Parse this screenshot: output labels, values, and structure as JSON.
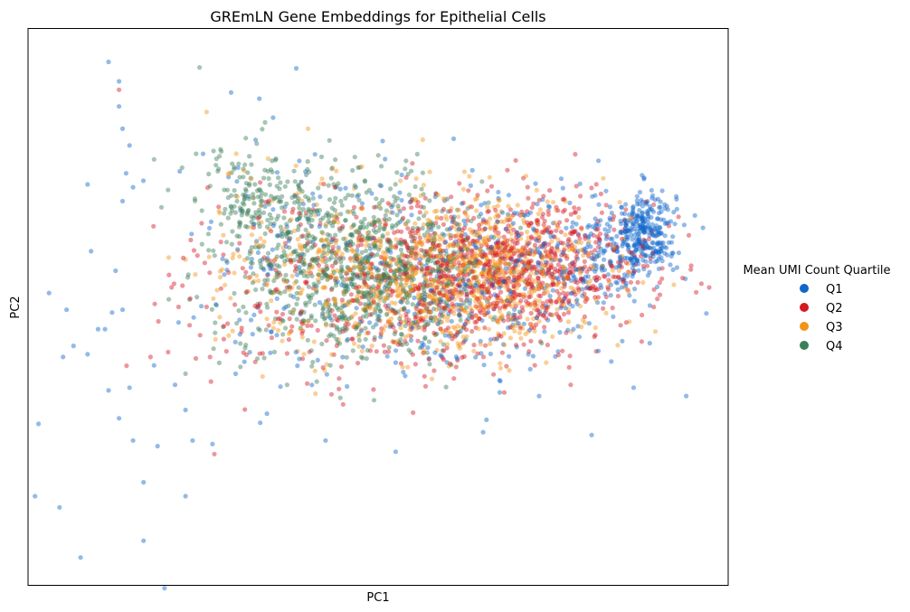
{
  "chart_data": {
    "type": "scatter",
    "title": "GREmLN Gene Embeddings for Epithelial Cells",
    "xlabel": "PC1",
    "ylabel": "PC2",
    "xlim": [
      -1.0,
      1.0
    ],
    "ylim": [
      -1.0,
      1.0
    ],
    "grid": false,
    "ticks": false,
    "legend": {
      "title": "Mean UMI Count Quartile",
      "placement": "outside-right",
      "entries": [
        "Q1",
        "Q2",
        "Q3",
        "Q4"
      ]
    },
    "series": [
      {
        "name": "Q1",
        "color": "#0f67cc",
        "anchors": [
          [
            -0.77,
            0.88
          ],
          [
            -0.74,
            0.81
          ],
          [
            -0.74,
            0.72
          ],
          [
            -0.73,
            0.64
          ],
          [
            -0.71,
            0.58
          ],
          [
            -0.72,
            0.48
          ],
          [
            -0.7,
            0.43
          ],
          [
            -0.73,
            0.38
          ],
          [
            -0.83,
            0.44
          ],
          [
            -0.82,
            0.2
          ],
          [
            -0.75,
            0.13
          ],
          [
            -0.73,
            -0.01
          ],
          [
            -0.76,
            -0.02
          ],
          [
            -0.78,
            -0.08
          ],
          [
            -0.87,
            -0.14
          ],
          [
            -0.8,
            -0.08
          ],
          [
            -0.83,
            -0.17
          ],
          [
            -0.89,
            -0.01
          ],
          [
            -0.9,
            -0.18
          ],
          [
            -0.94,
            0.05
          ],
          [
            -0.97,
            -0.42
          ],
          [
            -0.74,
            -0.4
          ],
          [
            -0.7,
            -0.48
          ],
          [
            -0.67,
            -0.84
          ],
          [
            -0.61,
            -1.01
          ],
          [
            -0.67,
            -0.63
          ],
          [
            -0.63,
            -0.5
          ],
          [
            -0.71,
            -0.29
          ],
          [
            -0.77,
            -0.3
          ],
          [
            -0.64,
            -0.21
          ],
          [
            -0.58,
            -0.28
          ],
          [
            -0.55,
            -0.37
          ],
          [
            -0.53,
            -0.48
          ],
          [
            -0.55,
            -0.68
          ],
          [
            -0.91,
            -0.72
          ],
          [
            -0.85,
            -0.9
          ],
          [
            -0.51,
            -1.12
          ],
          [
            -0.98,
            -0.68
          ],
          [
            -0.5,
            0.55
          ],
          [
            -0.42,
            0.77
          ],
          [
            -0.4,
            0.5
          ],
          [
            -0.35,
            0.6
          ],
          [
            -0.3,
            0.68
          ],
          [
            -0.3,
            0.35
          ],
          [
            -0.15,
            -0.48
          ],
          [
            0.05,
            -0.52
          ],
          [
            0.05,
            -0.2
          ],
          [
            0.3,
            -0.45
          ],
          [
            0.46,
            -0.32
          ],
          [
            0.61,
            -0.46
          ],
          [
            0.73,
            -0.29
          ],
          [
            0.88,
            -0.32
          ]
        ],
        "clusters": [
          {
            "cx": 0.76,
            "cy": 0.27,
            "sx": 0.045,
            "sy": 0.075,
            "n": 300
          },
          {
            "cx": 0.62,
            "cy": 0.18,
            "sx": 0.09,
            "sy": 0.1,
            "n": 140
          },
          {
            "cx": 0.35,
            "cy": 0.12,
            "sx": 0.2,
            "sy": 0.16,
            "n": 220
          },
          {
            "cx": 0.05,
            "cy": 0.08,
            "sx": 0.25,
            "sy": 0.2,
            "n": 160
          },
          {
            "cx": -0.3,
            "cy": 0.18,
            "sx": 0.18,
            "sy": 0.24,
            "n": 60
          }
        ]
      },
      {
        "name": "Q2",
        "color": "#d51824",
        "anchors": [
          [
            -0.74,
            0.78
          ],
          [
            -0.65,
            -0.18
          ],
          [
            -0.59,
            0.07
          ],
          [
            -0.57,
            0.0
          ],
          [
            -0.49,
            0.0
          ],
          [
            -0.48,
            -0.18
          ],
          [
            -0.43,
            -0.06
          ],
          [
            -0.1,
            -0.35
          ],
          [
            0.1,
            -0.38
          ],
          [
            0.55,
            -0.28
          ]
        ],
        "clusters": [
          {
            "cx": 0.45,
            "cy": 0.15,
            "sx": 0.17,
            "sy": 0.12,
            "n": 600
          },
          {
            "cx": 0.2,
            "cy": 0.08,
            "sx": 0.2,
            "sy": 0.15,
            "n": 400
          },
          {
            "cx": -0.1,
            "cy": 0.05,
            "sx": 0.2,
            "sy": 0.18,
            "n": 160
          },
          {
            "cx": -0.4,
            "cy": 0.12,
            "sx": 0.14,
            "sy": 0.2,
            "n": 50
          }
        ]
      },
      {
        "name": "Q3",
        "color": "#f39419",
        "anchors": [
          [
            -0.49,
            0.7
          ],
          [
            -0.2,
            0.64
          ],
          [
            -0.13,
            0.5
          ],
          [
            -0.16,
            0.46
          ],
          [
            -0.55,
            0.17
          ],
          [
            -0.46,
            0.06
          ],
          [
            -0.33,
            -0.25
          ],
          [
            -0.18,
            -0.23
          ],
          [
            0.35,
            -0.22
          ],
          [
            0.48,
            -0.2
          ]
        ],
        "clusters": [
          {
            "cx": 0.34,
            "cy": 0.13,
            "sx": 0.16,
            "sy": 0.12,
            "n": 500
          },
          {
            "cx": 0.12,
            "cy": 0.1,
            "sx": 0.18,
            "sy": 0.14,
            "n": 360
          },
          {
            "cx": -0.1,
            "cy": 0.12,
            "sx": 0.18,
            "sy": 0.16,
            "n": 160
          },
          {
            "cx": -0.32,
            "cy": 0.28,
            "sx": 0.12,
            "sy": 0.14,
            "n": 50
          }
        ]
      },
      {
        "name": "Q4",
        "color": "#3b7f58",
        "anchors": [
          [
            -0.51,
            0.86
          ],
          [
            -0.47,
            0.56
          ],
          [
            -0.52,
            0.55
          ],
          [
            -0.56,
            0.5
          ],
          [
            -0.6,
            0.42
          ],
          [
            -0.64,
            0.53
          ],
          [
            -0.55,
            -0.24
          ],
          [
            -0.47,
            -0.15
          ],
          [
            -0.26,
            -0.28
          ],
          [
            -0.2,
            -0.05
          ]
        ],
        "clusters": [
          {
            "cx": -0.03,
            "cy": 0.18,
            "sx": 0.13,
            "sy": 0.14,
            "n": 420
          },
          {
            "cx": -0.22,
            "cy": 0.22,
            "sx": 0.14,
            "sy": 0.16,
            "n": 260
          },
          {
            "cx": -0.36,
            "cy": 0.4,
            "sx": 0.07,
            "sy": 0.08,
            "n": 110
          },
          {
            "cx": 0.14,
            "cy": 0.12,
            "sx": 0.14,
            "sy": 0.12,
            "n": 200
          },
          {
            "cx": -0.1,
            "cy": -0.05,
            "sx": 0.16,
            "sy": 0.12,
            "n": 70
          }
        ]
      }
    ]
  }
}
